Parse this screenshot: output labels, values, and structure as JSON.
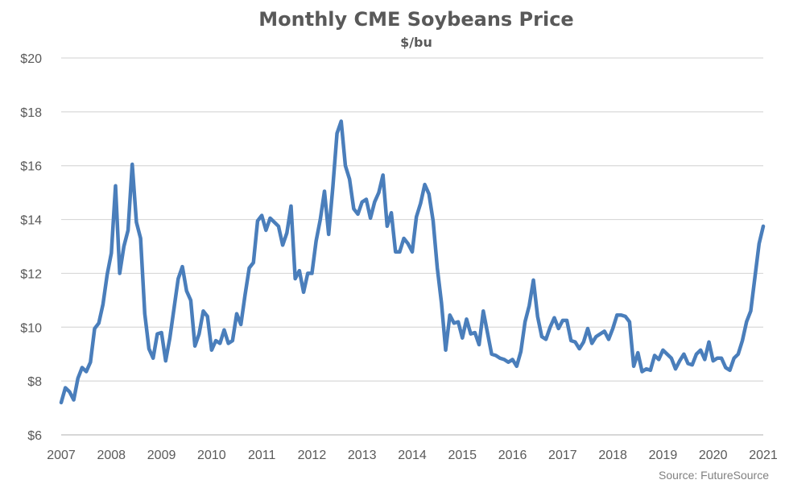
{
  "chart_data": {
    "type": "line",
    "title": "Monthly CME Soybeans Price",
    "subtitle": "$/bu",
    "source": "Source: FutureSource",
    "xlim": [
      2007,
      2021
    ],
    "ylim": [
      6,
      20
    ],
    "x_ticks": [
      2007,
      2008,
      2009,
      2010,
      2011,
      2012,
      2013,
      2014,
      2015,
      2016,
      2017,
      2018,
      2019,
      2020,
      2021
    ],
    "y_ticks": [
      "$6",
      "$8",
      "$10",
      "$12",
      "$14",
      "$16",
      "$18",
      "$20"
    ],
    "y_tick_values": [
      6,
      8,
      10,
      12,
      14,
      16,
      18,
      20
    ],
    "grid": true,
    "colors": {
      "series": "#4a7ebb",
      "text": "#595959",
      "grid": "#d9d9d9"
    },
    "series": [
      {
        "name": "",
        "x": [
          "2007-01",
          "2007-02",
          "2007-03",
          "2007-04",
          "2007-05",
          "2007-06",
          "2007-07",
          "2007-08",
          "2007-09",
          "2007-10",
          "2007-11",
          "2007-12",
          "2008-01",
          "2008-02",
          "2008-03",
          "2008-04",
          "2008-05",
          "2008-06",
          "2008-07",
          "2008-08",
          "2008-09",
          "2008-10",
          "2008-11",
          "2008-12",
          "2009-01",
          "2009-02",
          "2009-03",
          "2009-04",
          "2009-05",
          "2009-06",
          "2009-07",
          "2009-08",
          "2009-09",
          "2009-10",
          "2009-11",
          "2009-12",
          "2010-01",
          "2010-02",
          "2010-03",
          "2010-04",
          "2010-05",
          "2010-06",
          "2010-07",
          "2010-08",
          "2010-09",
          "2010-10",
          "2010-11",
          "2010-12",
          "2011-01",
          "2011-02",
          "2011-03",
          "2011-04",
          "2011-05",
          "2011-06",
          "2011-07",
          "2011-08",
          "2011-09",
          "2011-10",
          "2011-11",
          "2011-12",
          "2012-01",
          "2012-02",
          "2012-03",
          "2012-04",
          "2012-05",
          "2012-06",
          "2012-07",
          "2012-08",
          "2012-09",
          "2012-10",
          "2012-11",
          "2012-12",
          "2013-01",
          "2013-02",
          "2013-03",
          "2013-04",
          "2013-05",
          "2013-06",
          "2013-07",
          "2013-08",
          "2013-09",
          "2013-10",
          "2013-11",
          "2013-12",
          "2014-01",
          "2014-02",
          "2014-03",
          "2014-04",
          "2014-05",
          "2014-06",
          "2014-07",
          "2014-08",
          "2014-09",
          "2014-10",
          "2014-11",
          "2014-12",
          "2015-01",
          "2015-02",
          "2015-03",
          "2015-04",
          "2015-05",
          "2015-06",
          "2015-07",
          "2015-08",
          "2015-09",
          "2015-10",
          "2015-11",
          "2015-12",
          "2016-01",
          "2016-02",
          "2016-03",
          "2016-04",
          "2016-05",
          "2016-06",
          "2016-07",
          "2016-08",
          "2016-09",
          "2016-10",
          "2016-11",
          "2016-12",
          "2017-01",
          "2017-02",
          "2017-03",
          "2017-04",
          "2017-05",
          "2017-06",
          "2017-07",
          "2017-08",
          "2017-09",
          "2017-10",
          "2017-11",
          "2017-12",
          "2018-01",
          "2018-02",
          "2018-03",
          "2018-04",
          "2018-05",
          "2018-06",
          "2018-07",
          "2018-08",
          "2018-09",
          "2018-10",
          "2018-11",
          "2018-12",
          "2019-01",
          "2019-02",
          "2019-03",
          "2019-04",
          "2019-05",
          "2019-06",
          "2019-07",
          "2019-08",
          "2019-09",
          "2019-10",
          "2019-11",
          "2019-12",
          "2020-01",
          "2020-02",
          "2020-03",
          "2020-04",
          "2020-05",
          "2020-06",
          "2020-07",
          "2020-08",
          "2020-09",
          "2020-10",
          "2020-11",
          "2020-12",
          "2021-01"
        ],
        "values": [
          7.2,
          7.75,
          7.6,
          7.3,
          8.1,
          8.5,
          8.35,
          8.7,
          9.95,
          10.15,
          10.85,
          11.95,
          12.75,
          15.25,
          12.0,
          13.0,
          13.6,
          16.05,
          13.9,
          13.3,
          10.5,
          9.2,
          8.85,
          9.75,
          9.8,
          8.75,
          9.6,
          10.7,
          11.8,
          12.25,
          11.35,
          11.0,
          9.3,
          9.75,
          10.6,
          10.4,
          9.15,
          9.5,
          9.4,
          9.9,
          9.4,
          9.5,
          10.5,
          10.1,
          11.2,
          12.2,
          12.4,
          13.95,
          14.15,
          13.6,
          14.05,
          13.9,
          13.75,
          13.05,
          13.5,
          14.5,
          11.8,
          12.1,
          11.3,
          12.0,
          12.0,
          13.2,
          14.0,
          15.05,
          13.45,
          15.2,
          17.2,
          17.65,
          16.0,
          15.5,
          14.4,
          14.2,
          14.65,
          14.75,
          14.05,
          14.65,
          15.0,
          15.65,
          13.75,
          14.25,
          12.8,
          12.8,
          13.3,
          13.1,
          12.8,
          14.1,
          14.6,
          15.3,
          14.95,
          13.95,
          12.2,
          10.9,
          9.15,
          10.45,
          10.15,
          10.2,
          9.6,
          10.3,
          9.75,
          9.8,
          9.35,
          10.6,
          9.8,
          9.0,
          8.95,
          8.85,
          8.8,
          8.7,
          8.8,
          8.55,
          9.1,
          10.2,
          10.8,
          11.75,
          10.4,
          9.65,
          9.55,
          10.0,
          10.35,
          9.95,
          10.25,
          10.25,
          9.5,
          9.45,
          9.2,
          9.45,
          9.95,
          9.4,
          9.65,
          9.75,
          9.85,
          9.55,
          9.95,
          10.45,
          10.45,
          10.4,
          10.2,
          8.55,
          9.05,
          8.35,
          8.45,
          8.4,
          8.95,
          8.8,
          9.15,
          9.0,
          8.85,
          8.45,
          8.75,
          9.0,
          8.65,
          8.6,
          9.0,
          9.15,
          8.8,
          9.45,
          8.75,
          8.85,
          8.85,
          8.5,
          8.4,
          8.85,
          9.0,
          9.5,
          10.2,
          10.6,
          11.85,
          13.1,
          13.75
        ]
      }
    ]
  }
}
